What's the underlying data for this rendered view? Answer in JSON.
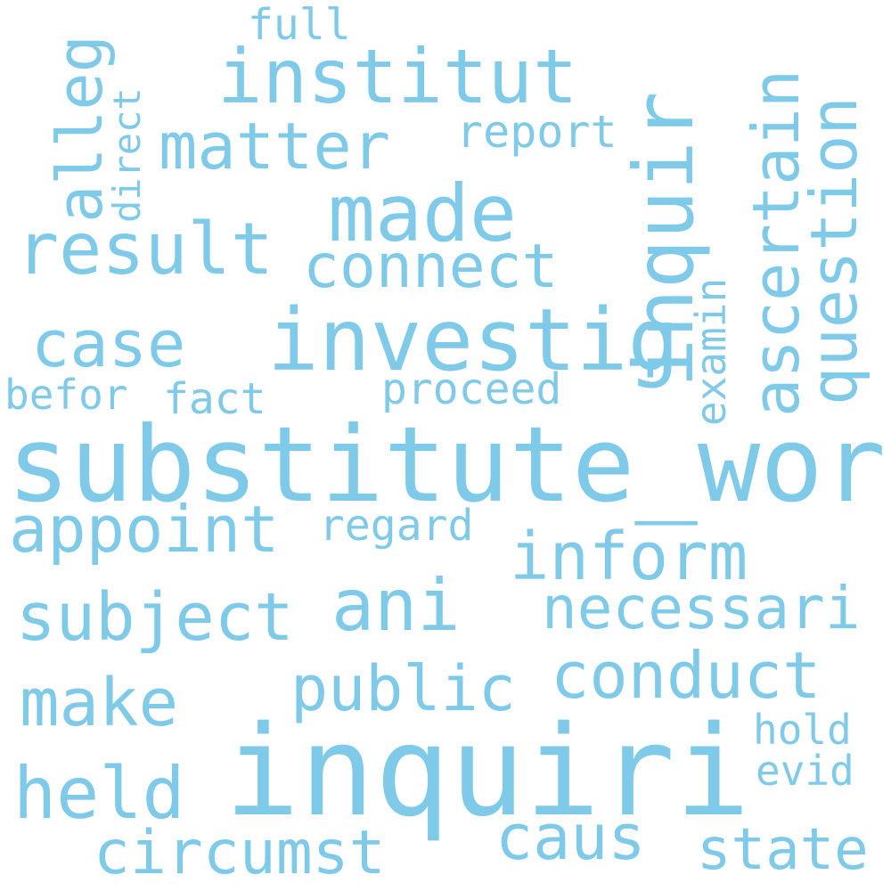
{
  "colors": {
    "word": "#7ecae8",
    "background": "#ffffff"
  },
  "words": [
    {
      "text": "inquiri",
      "orientation": "horizontal"
    },
    {
      "text": "substitute_word",
      "orientation": "horizontal"
    },
    {
      "text": "investig",
      "orientation": "horizontal"
    },
    {
      "text": "inquir",
      "orientation": "vertical"
    },
    {
      "text": "institut",
      "orientation": "horizontal"
    },
    {
      "text": "made",
      "orientation": "horizontal"
    },
    {
      "text": "result",
      "orientation": "horizontal"
    },
    {
      "text": "question",
      "orientation": "vertical"
    },
    {
      "text": "ascertain",
      "orientation": "vertical"
    },
    {
      "text": "matter",
      "orientation": "horizontal"
    },
    {
      "text": "alleg",
      "orientation": "vertical"
    },
    {
      "text": "case",
      "orientation": "horizontal"
    },
    {
      "text": "connect",
      "orientation": "horizontal"
    },
    {
      "text": "appoint",
      "orientation": "horizontal"
    },
    {
      "text": "inform",
      "orientation": "horizontal"
    },
    {
      "text": "subject",
      "orientation": "horizontal"
    },
    {
      "text": "ani",
      "orientation": "horizontal"
    },
    {
      "text": "necessari",
      "orientation": "horizontal"
    },
    {
      "text": "conduct",
      "orientation": "horizontal"
    },
    {
      "text": "make",
      "orientation": "horizontal"
    },
    {
      "text": "public",
      "orientation": "horizontal"
    },
    {
      "text": "held",
      "orientation": "horizontal"
    },
    {
      "text": "circumst",
      "orientation": "horizontal"
    },
    {
      "text": "caus",
      "orientation": "horizontal"
    },
    {
      "text": "state",
      "orientation": "horizontal"
    },
    {
      "text": "report",
      "orientation": "horizontal"
    },
    {
      "text": "proceed",
      "orientation": "horizontal"
    },
    {
      "text": "regard",
      "orientation": "horizontal"
    },
    {
      "text": "befor",
      "orientation": "horizontal"
    },
    {
      "text": "fact",
      "orientation": "horizontal"
    },
    {
      "text": "examin",
      "orientation": "vertical"
    },
    {
      "text": "direct",
      "orientation": "vertical"
    },
    {
      "text": "full",
      "orientation": "horizontal"
    },
    {
      "text": "hold",
      "orientation": "horizontal"
    },
    {
      "text": "evid",
      "orientation": "horizontal"
    }
  ]
}
